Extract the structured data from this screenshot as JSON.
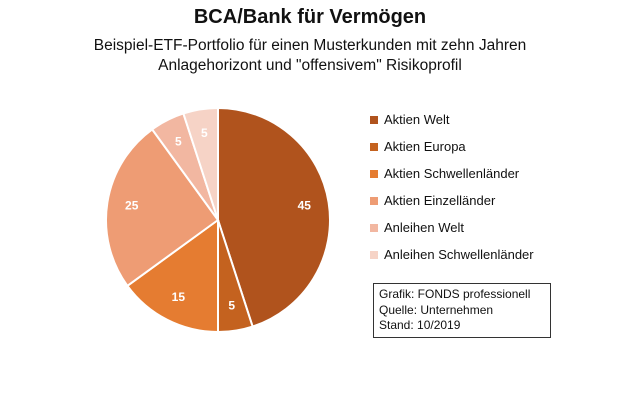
{
  "chart_data": {
    "type": "pie",
    "title": "BCA/Bank für Vermögen",
    "subtitle_lines": [
      "Beispiel-ETF-Portfolio für einen Musterkunden mit zehn Jahren",
      "Anlagehorizont und \"offensivem\" Risikoprofil"
    ],
    "categories": [
      "Aktien Welt",
      "Aktien Europa",
      "Aktien Schwellenländer",
      "Aktien Einzelländer",
      "Anleihen Welt",
      "Anleihen Schwellenländer"
    ],
    "values": [
      45,
      5,
      15,
      25,
      5,
      5
    ],
    "colors": [
      "#b0531d",
      "#c4621f",
      "#e57c31",
      "#ee9c74",
      "#f2b7a1",
      "#f6d3c6"
    ],
    "legend_position": "right"
  },
  "source_box": {
    "line1": "Grafik: FONDS professionell",
    "line2": "Quelle: Unternehmen",
    "line3": "Stand: 10/2019"
  }
}
